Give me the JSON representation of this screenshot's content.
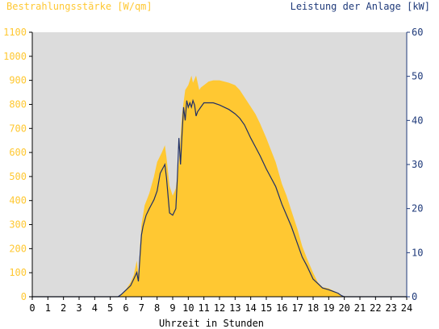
{
  "chart_data": {
    "type": "area",
    "title_left": "Bestrahlungsstärke [W/qm]",
    "title_right": "Leistung der Anlage [kW]",
    "xlabel": "Uhrzeit in Stunden",
    "x_ticks": [
      "0",
      "1",
      "2",
      "3",
      "4",
      "5",
      "6",
      "7",
      "8",
      "9",
      "10",
      "11",
      "12",
      "13",
      "14",
      "15",
      "16",
      "17",
      "18",
      "19",
      "20",
      "21",
      "22",
      "23",
      "24"
    ],
    "y_left_ticks": [
      "0",
      "100",
      "200",
      "300",
      "400",
      "500",
      "600",
      "700",
      "800",
      "900",
      "1000",
      "1100"
    ],
    "y_right_ticks": [
      "0",
      "10",
      "20",
      "30",
      "40",
      "50",
      "60"
    ],
    "xlim": [
      0,
      24
    ],
    "ylim_left": [
      0,
      1100
    ],
    "ylim_right": [
      0,
      60
    ],
    "grid": false,
    "colors": {
      "plot_bg": "#dcdcdc",
      "irradiance_fill": "#ffc832",
      "power_line": "#1f2f66",
      "left_axis_text": "#ffc832",
      "right_axis_text": "#1f3a7a",
      "axis_text": "#000000"
    },
    "series": [
      {
        "name": "",
        "axis": "left",
        "style": "area",
        "x": [
          0,
          5.5,
          5.7,
          6.0,
          6.3,
          6.5,
          6.7,
          6.8,
          6.9,
          7.0,
          7.2,
          7.5,
          7.8,
          8.0,
          8.3,
          8.5,
          8.6,
          8.8,
          9.0,
          9.2,
          9.4,
          9.6,
          9.8,
          10.0,
          10.2,
          10.3,
          10.5,
          10.7,
          10.8,
          11.0,
          11.3,
          11.6,
          12.0,
          12.3,
          12.6,
          13.0,
          13.3,
          13.6,
          14.0,
          14.3,
          14.6,
          15.0,
          15.3,
          15.6,
          16.0,
          16.3,
          16.6,
          17.0,
          17.3,
          17.6,
          18.0,
          18.3,
          18.6,
          19.0,
          19.3,
          19.6,
          19.8,
          20.0,
          24
        ],
        "y": [
          0,
          0,
          10,
          30,
          60,
          90,
          150,
          90,
          200,
          300,
          380,
          430,
          500,
          560,
          600,
          630,
          580,
          460,
          420,
          450,
          560,
          760,
          860,
          880,
          920,
          890,
          920,
          860,
          870,
          880,
          895,
          900,
          900,
          895,
          890,
          880,
          860,
          830,
          790,
          760,
          720,
          660,
          610,
          560,
          470,
          420,
          360,
          280,
          210,
          160,
          100,
          60,
          40,
          35,
          25,
          15,
          5,
          0,
          0
        ]
      },
      {
        "name": "",
        "axis": "right",
        "style": "line",
        "x": [
          0,
          5.5,
          5.7,
          6.0,
          6.3,
          6.5,
          6.7,
          6.8,
          6.9,
          7.0,
          7.1,
          7.3,
          7.5,
          7.8,
          8.0,
          8.2,
          8.5,
          8.6,
          8.8,
          9.0,
          9.2,
          9.3,
          9.4,
          9.5,
          9.6,
          9.7,
          9.8,
          9.9,
          10.0,
          10.1,
          10.2,
          10.3,
          10.4,
          10.5,
          10.6,
          10.7,
          10.8,
          11.0,
          11.3,
          11.6,
          12.0,
          12.3,
          12.6,
          13.0,
          13.3,
          13.6,
          14.0,
          14.3,
          14.6,
          15.0,
          15.3,
          15.6,
          16.0,
          16.3,
          16.6,
          17.0,
          17.3,
          17.6,
          18.0,
          18.3,
          18.6,
          19.0,
          19.3,
          19.6,
          19.8,
          20.0,
          24
        ],
        "y": [
          0,
          0,
          0.5,
          1.5,
          2.5,
          4,
          5.5,
          3.5,
          9,
          14,
          16,
          18.5,
          20,
          22,
          24,
          28,
          30,
          27,
          19,
          18.5,
          20,
          27,
          36,
          30,
          37,
          43,
          40,
          44.5,
          43,
          44,
          43,
          44.5,
          43.5,
          41,
          42,
          42.5,
          43,
          44,
          44,
          44,
          43.5,
          43,
          42.5,
          41.5,
          40.5,
          39,
          36,
          34,
          32,
          29,
          27,
          25,
          21,
          18.5,
          16,
          12,
          9,
          7,
          4,
          3,
          2,
          1.6,
          1.2,
          0.8,
          0.3,
          0,
          0
        ]
      }
    ]
  }
}
